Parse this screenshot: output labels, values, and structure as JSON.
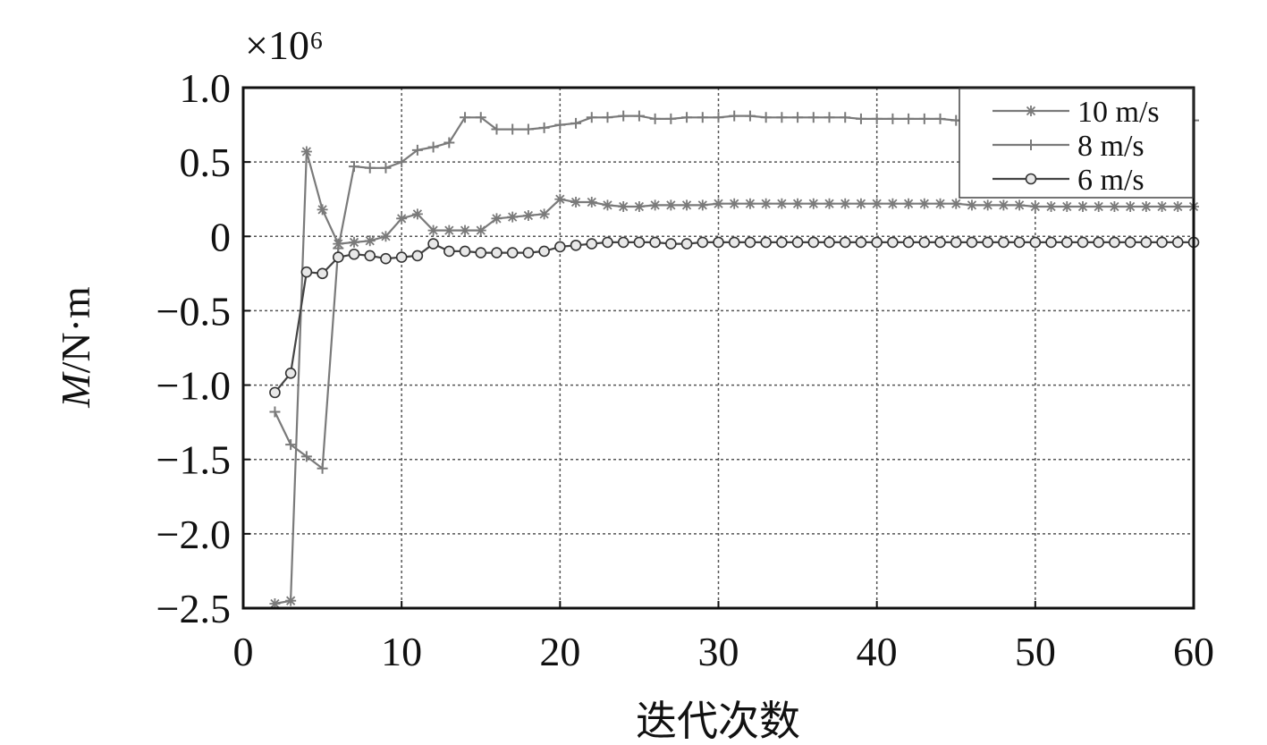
{
  "chart_data": {
    "type": "line",
    "scale_label": "×10⁶",
    "xlabel": "迭代次数",
    "ylabel": "M/N·m",
    "ylabel_parts": [
      "M",
      "/N·m"
    ],
    "xlim": [
      0,
      60
    ],
    "ylim": [
      -2.5,
      1.0
    ],
    "x_ticks": [
      "0",
      "10",
      "20",
      "30",
      "40",
      "50",
      "60"
    ],
    "y_ticks": [
      "1.0",
      "0.5",
      "0",
      "−0.5",
      "−1.0",
      "−1.5",
      "−2.0",
      "−2.5"
    ],
    "grid": true,
    "legend_position": "top-right",
    "series": [
      {
        "name": "10 m/s",
        "marker": "star",
        "x": [
          2,
          3,
          4,
          5,
          6,
          7,
          8,
          9,
          10,
          11,
          12,
          13,
          14,
          15,
          16,
          17,
          18,
          19,
          20,
          21,
          22,
          23,
          24,
          25,
          26,
          27,
          28,
          29,
          30,
          31,
          32,
          33,
          34,
          35,
          36,
          37,
          38,
          39,
          40,
          41,
          42,
          43,
          44,
          45,
          46,
          47,
          48,
          49,
          50,
          51,
          52,
          53,
          54,
          55,
          56,
          57,
          58,
          59,
          60
        ],
        "values": [
          -2.47,
          -2.45,
          0.57,
          0.18,
          -0.05,
          -0.04,
          -0.03,
          0.0,
          0.12,
          0.15,
          0.04,
          0.04,
          0.04,
          0.04,
          0.12,
          0.13,
          0.14,
          0.15,
          0.25,
          0.23,
          0.23,
          0.21,
          0.2,
          0.2,
          0.21,
          0.21,
          0.21,
          0.21,
          0.22,
          0.22,
          0.22,
          0.22,
          0.22,
          0.22,
          0.22,
          0.22,
          0.22,
          0.22,
          0.22,
          0.22,
          0.22,
          0.22,
          0.22,
          0.22,
          0.21,
          0.21,
          0.21,
          0.21,
          0.2,
          0.2,
          0.2,
          0.2,
          0.2,
          0.2,
          0.2,
          0.2,
          0.2,
          0.2,
          0.2
        ]
      },
      {
        "name": "8 m/s",
        "marker": "plus",
        "x": [
          2,
          3,
          4,
          5,
          6,
          7,
          8,
          9,
          10,
          11,
          12,
          13,
          14,
          15,
          16,
          17,
          18,
          19,
          20,
          21,
          22,
          23,
          24,
          25,
          26,
          27,
          28,
          29,
          30,
          31,
          32,
          33,
          34,
          35,
          36,
          37,
          38,
          39,
          40,
          41,
          42,
          43,
          44,
          45,
          46,
          47,
          48,
          49,
          50,
          51,
          52,
          53,
          54,
          55,
          56,
          57,
          58,
          59,
          60
        ],
        "values": [
          -1.18,
          -1.4,
          -1.48,
          -1.56,
          -0.08,
          0.47,
          0.46,
          0.46,
          0.5,
          0.58,
          0.6,
          0.63,
          0.8,
          0.8,
          0.72,
          0.72,
          0.72,
          0.73,
          0.75,
          0.76,
          0.8,
          0.8,
          0.81,
          0.81,
          0.79,
          0.79,
          0.8,
          0.8,
          0.8,
          0.81,
          0.81,
          0.8,
          0.8,
          0.8,
          0.8,
          0.8,
          0.8,
          0.79,
          0.79,
          0.79,
          0.79,
          0.79,
          0.79,
          0.78,
          0.78,
          0.78,
          0.78,
          0.78,
          0.78,
          0.78,
          0.78,
          0.78,
          0.78,
          0.78,
          0.78,
          0.78,
          0.78,
          0.78,
          0.78
        ]
      },
      {
        "name": "6 m/s",
        "marker": "circle",
        "x": [
          2,
          3,
          4,
          5,
          6,
          7,
          8,
          9,
          10,
          11,
          12,
          13,
          14,
          15,
          16,
          17,
          18,
          19,
          20,
          21,
          22,
          23,
          24,
          25,
          26,
          27,
          28,
          29,
          30,
          31,
          32,
          33,
          34,
          35,
          36,
          37,
          38,
          39,
          40,
          41,
          42,
          43,
          44,
          45,
          46,
          47,
          48,
          49,
          50,
          51,
          52,
          53,
          54,
          55,
          56,
          57,
          58,
          59,
          60
        ],
        "values": [
          -1.05,
          -0.92,
          -0.24,
          -0.25,
          -0.14,
          -0.12,
          -0.13,
          -0.15,
          -0.14,
          -0.13,
          -0.05,
          -0.1,
          -0.1,
          -0.11,
          -0.11,
          -0.11,
          -0.11,
          -0.1,
          -0.07,
          -0.06,
          -0.05,
          -0.04,
          -0.04,
          -0.04,
          -0.04,
          -0.05,
          -0.05,
          -0.04,
          -0.04,
          -0.04,
          -0.04,
          -0.04,
          -0.04,
          -0.04,
          -0.04,
          -0.04,
          -0.04,
          -0.04,
          -0.04,
          -0.04,
          -0.04,
          -0.04,
          -0.04,
          -0.04,
          -0.04,
          -0.04,
          -0.04,
          -0.04,
          -0.04,
          -0.04,
          -0.04,
          -0.04,
          -0.04,
          -0.04,
          -0.04,
          -0.04,
          -0.04,
          -0.04,
          -0.04
        ]
      }
    ]
  }
}
